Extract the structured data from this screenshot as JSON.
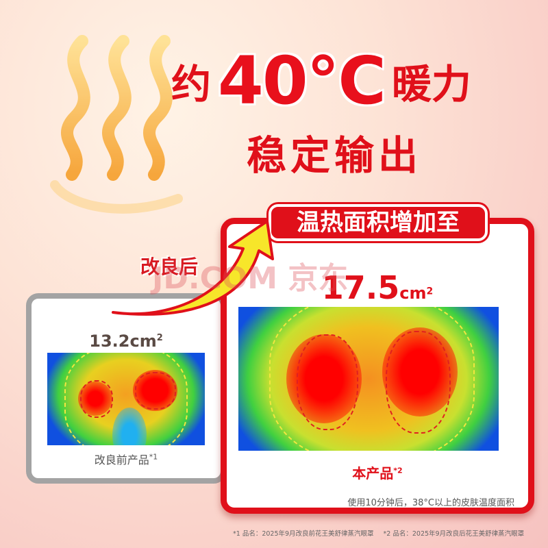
{
  "headline": {
    "prefix": "约",
    "temperature": "40℃",
    "suffix": "暖力",
    "line2": "稳定输出"
  },
  "watermark": "JD.COM 京东",
  "improved_label": "改良后",
  "before_card": {
    "area_value": "13.2cm",
    "area_sup": "2",
    "label": "改良前产品",
    "label_sup": "*1"
  },
  "after_card": {
    "banner": "温热面积增加至",
    "area_value": "17.5",
    "area_unit": "cm",
    "area_sup": "2",
    "label": "本产品",
    "label_sup": "*2",
    "caption": "使用10分钟后，38°C以上的皮肤温度面积"
  },
  "footnotes": [
    "*1 品名：2025年9月改良前花王美舒律蒸汽眼罩",
    "*2 品名：2025年9月改良后花王美舒律蒸汽眼罩"
  ],
  "colors": {
    "accent": "#e0101a",
    "arrow": "#f5e020",
    "wave": "#f7b030"
  }
}
